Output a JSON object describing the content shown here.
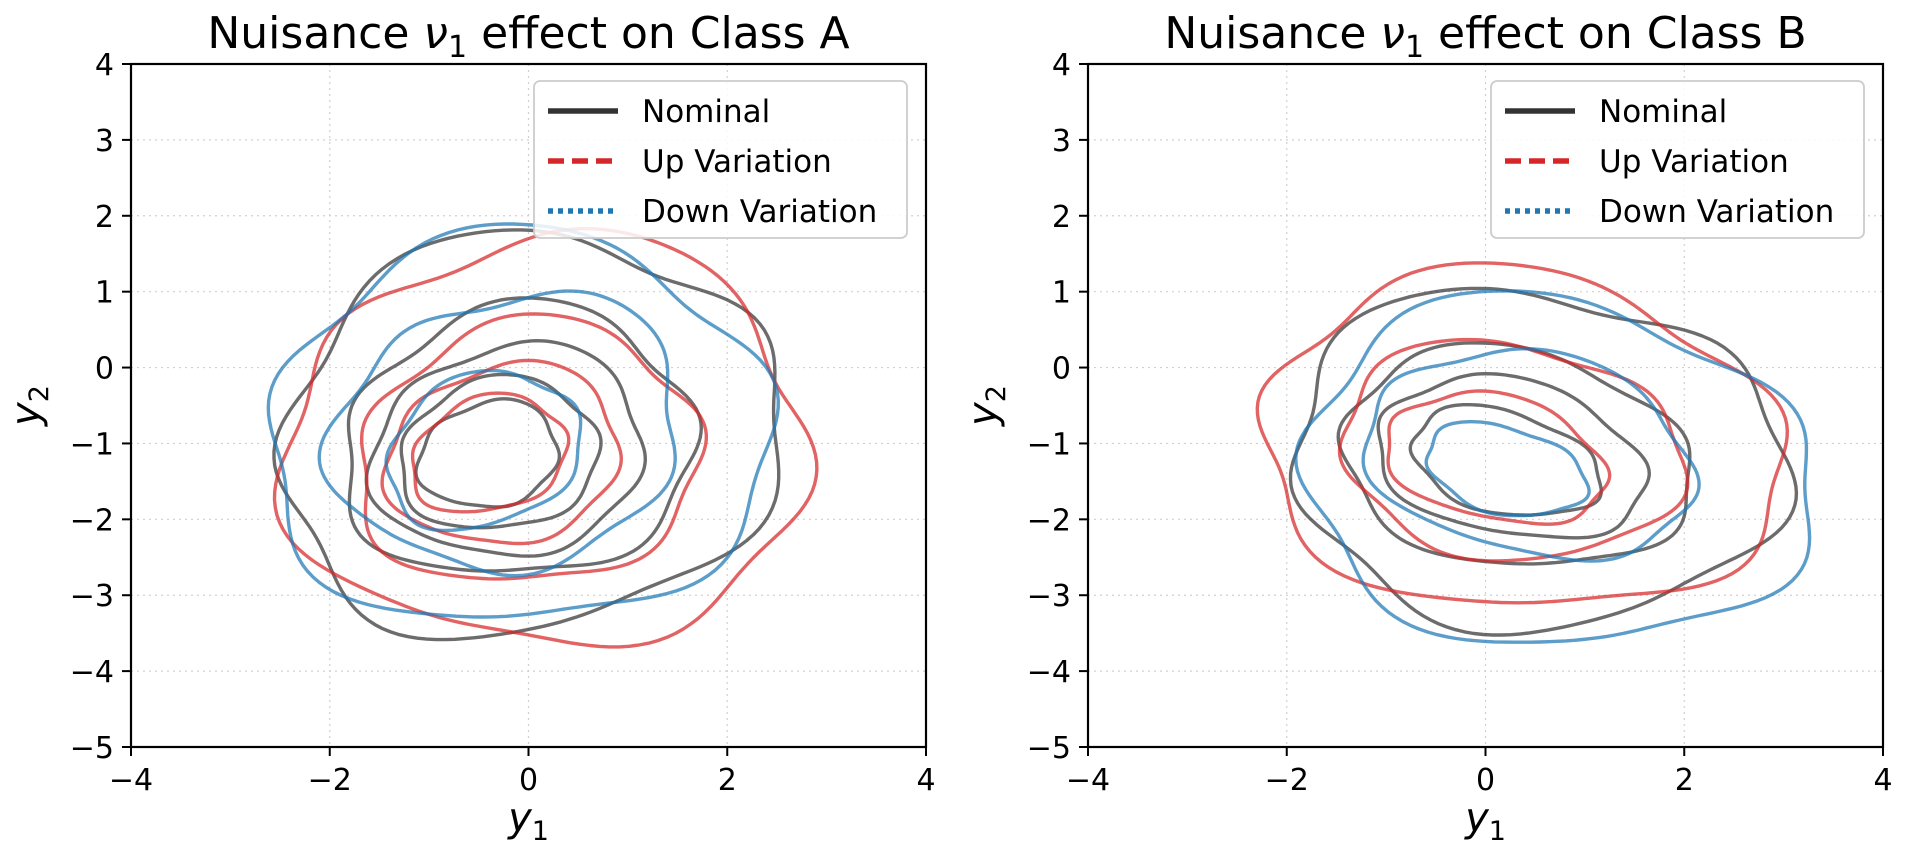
{
  "chart_data": [
    {
      "type": "contour",
      "title_prefix": "Nuisance ",
      "title_symbol": "ν",
      "title_subscript": "1",
      "title_suffix": " effect on Class A",
      "xlabel_symbol": "y",
      "xlabel_subscript": "1",
      "ylabel_symbol": "y",
      "ylabel_subscript": "2",
      "xlim": [
        -4,
        4
      ],
      "ylim": [
        -5,
        4
      ],
      "xticks": [
        -4,
        -2,
        0,
        2,
        4
      ],
      "yticks": [
        -5,
        -4,
        -3,
        -2,
        -1,
        0,
        1,
        2,
        3,
        4
      ],
      "xtick_labels": [
        "−4",
        "−2",
        "0",
        "2",
        "4"
      ],
      "ytick_labels": [
        "−5",
        "−4",
        "−3",
        "−2",
        "−1",
        "0",
        "1",
        "2",
        "3",
        "4"
      ],
      "grid": true,
      "legend_position": "top-right",
      "legend": [
        {
          "label": "Nominal",
          "color": "#333333",
          "style": "solid"
        },
        {
          "label": "Up Variation",
          "color": "#d62728",
          "style": "dashed"
        },
        {
          "label": "Down Variation",
          "color": "#1f77b4",
          "style": "dotted"
        }
      ],
      "series": [
        {
          "name": "Nominal",
          "color": "#333333",
          "levels": [
            {
              "cx": 0.0,
              "cy": -0.9,
              "rx": 2.45,
              "ry": 2.7,
              "rot": -30,
              "wob": 0.05,
              "ph": 0.3
            },
            {
              "cx": -0.1,
              "cy": -1.0,
              "rx": 1.7,
              "ry": 1.85,
              "rot": -38,
              "wob": 0.05,
              "ph": 1.1
            },
            {
              "cx": -0.2,
              "cy": -1.1,
              "rx": 1.3,
              "ry": 1.45,
              "rot": -40,
              "wob": 0.04,
              "ph": 2.0
            },
            {
              "cx": -0.3,
              "cy": -1.15,
              "rx": 0.95,
              "ry": 1.05,
              "rot": -42,
              "wob": 0.04,
              "ph": 0.7
            },
            {
              "cx": -0.4,
              "cy": -1.15,
              "rx": 0.65,
              "ry": 0.75,
              "rot": -45,
              "wob": 0.04,
              "ph": 1.6
            }
          ]
        },
        {
          "name": "Up Variation",
          "color": "#d62728",
          "levels": [
            {
              "cx": 0.2,
              "cy": -1.0,
              "rx": 2.6,
              "ry": 2.7,
              "rot": -30,
              "wob": 0.05,
              "ph": 2.4
            },
            {
              "cx": 0.0,
              "cy": -1.15,
              "rx": 1.65,
              "ry": 1.8,
              "rot": -40,
              "wob": 0.05,
              "ph": 0.9
            },
            {
              "cx": -0.25,
              "cy": -1.15,
              "rx": 1.1,
              "ry": 1.25,
              "rot": -42,
              "wob": 0.04,
              "ph": 1.8
            },
            {
              "cx": -0.4,
              "cy": -1.15,
              "rx": 0.7,
              "ry": 0.85,
              "rot": -45,
              "wob": 0.04,
              "ph": 0.4
            }
          ]
        },
        {
          "name": "Down Variation",
          "color": "#1f77b4",
          "levels": [
            {
              "cx": -0.1,
              "cy": -0.85,
              "rx": 2.5,
              "ry": 2.6,
              "rot": -28,
              "wob": 0.05,
              "ph": 1.3
            },
            {
              "cx": -0.2,
              "cy": -0.85,
              "rx": 1.65,
              "ry": 1.9,
              "rot": -38,
              "wob": 0.05,
              "ph": 2.7
            },
            {
              "cx": -0.45,
              "cy": -1.1,
              "rx": 0.9,
              "ry": 1.1,
              "rot": -35,
              "wob": 0.04,
              "ph": 0.2
            }
          ]
        }
      ]
    },
    {
      "type": "contour",
      "title_prefix": "Nuisance ",
      "title_symbol": "ν",
      "title_subscript": "1",
      "title_suffix": " effect on Class B",
      "xlabel_symbol": "y",
      "xlabel_subscript": "1",
      "ylabel_symbol": "y",
      "ylabel_subscript": "2",
      "xlim": [
        -4,
        4
      ],
      "ylim": [
        -5,
        4
      ],
      "xticks": [
        -4,
        -2,
        0,
        2,
        4
      ],
      "yticks": [
        -5,
        -4,
        -3,
        -2,
        -1,
        0,
        1,
        2,
        3,
        4
      ],
      "xtick_labels": [
        "−4",
        "−2",
        "0",
        "2",
        "4"
      ],
      "ytick_labels": [
        "−5",
        "−4",
        "−3",
        "−2",
        "−1",
        "0",
        "1",
        "2",
        "3",
        "4"
      ],
      "grid": true,
      "legend_position": "top-right",
      "legend": [
        {
          "label": "Nominal",
          "color": "#333333",
          "style": "solid"
        },
        {
          "label": "Up Variation",
          "color": "#d62728",
          "style": "dashed"
        },
        {
          "label": "Down Variation",
          "color": "#1f77b4",
          "style": "dotted"
        }
      ],
      "series": [
        {
          "name": "Nominal",
          "color": "#333333",
          "levels": [
            {
              "cx": 0.5,
              "cy": -1.2,
              "rx": 2.5,
              "ry": 2.2,
              "rot": -15,
              "wob": 0.05,
              "ph": 0.5
            },
            {
              "cx": 0.3,
              "cy": -1.2,
              "rx": 1.8,
              "ry": 1.4,
              "rot": -20,
              "wob": 0.04,
              "ph": 1.4
            },
            {
              "cx": 0.25,
              "cy": -1.2,
              "rx": 1.4,
              "ry": 1.0,
              "rot": -22,
              "wob": 0.04,
              "ph": 2.2
            },
            {
              "cx": 0.2,
              "cy": -1.25,
              "rx": 1.0,
              "ry": 0.65,
              "rot": -25,
              "wob": 0.04,
              "ph": 0.8
            }
          ]
        },
        {
          "name": "Up Variation",
          "color": "#d62728",
          "levels": [
            {
              "cx": 0.35,
              "cy": -1.0,
              "rx": 2.65,
              "ry": 2.2,
              "rot": -15,
              "wob": 0.05,
              "ph": 1.9
            },
            {
              "cx": 0.25,
              "cy": -1.1,
              "rx": 1.75,
              "ry": 1.4,
              "rot": -18,
              "wob": 0.04,
              "ph": 0.6
            },
            {
              "cx": 0.1,
              "cy": -1.2,
              "rx": 1.15,
              "ry": 0.8,
              "rot": -22,
              "wob": 0.04,
              "ph": 2.5
            }
          ]
        },
        {
          "name": "Down Variation",
          "color": "#1f77b4",
          "levels": [
            {
              "cx": 0.7,
              "cy": -1.4,
              "rx": 2.6,
              "ry": 2.25,
              "rot": -20,
              "wob": 0.05,
              "ph": 1.1
            },
            {
              "cx": 0.45,
              "cy": -1.15,
              "rx": 1.7,
              "ry": 1.3,
              "rot": -22,
              "wob": 0.04,
              "ph": 2.9
            },
            {
              "cx": 0.2,
              "cy": -1.35,
              "rx": 0.85,
              "ry": 0.55,
              "rot": -25,
              "wob": 0.04,
              "ph": 0.3
            }
          ]
        }
      ]
    }
  ]
}
